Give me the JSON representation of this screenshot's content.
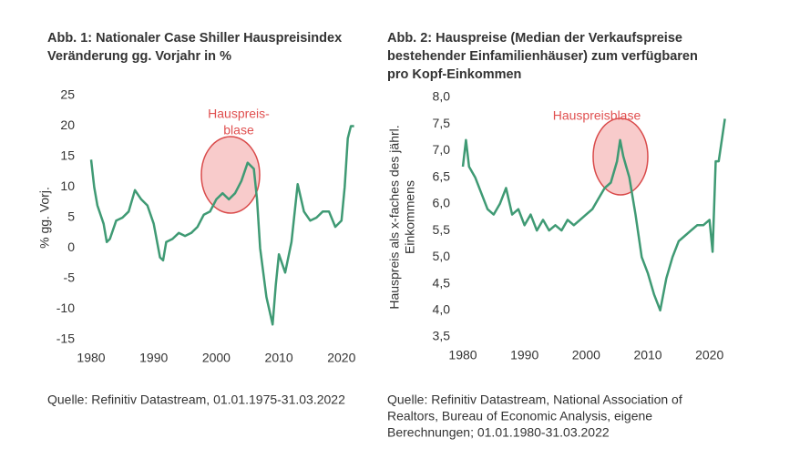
{
  "chart_data": [
    {
      "type": "line",
      "title": [
        "Abb. 1: Nationaler Case Shiller Hauspreisindex",
        "Veränderung gg. Vorjahr in %"
      ],
      "ylabel": "% gg. Vorj.",
      "annotation": [
        "Hauspreis-",
        "blase"
      ],
      "source": [
        "Quelle: Refinitiv Datastream, 01.01.1975-31.03.2022"
      ],
      "xlim": [
        1980,
        2022.5
      ],
      "xticks": [
        1980,
        1990,
        2000,
        2010,
        2020
      ],
      "ylim": [
        -15,
        25
      ],
      "yticks": [
        -15,
        -10,
        -5,
        0,
        5,
        10,
        15,
        20,
        25
      ],
      "series": [
        {
          "color": "#3f9a74",
          "x": [
            1980,
            1980.5,
            1981,
            1982,
            1982.5,
            1983,
            1984,
            1985,
            1986,
            1987,
            1988,
            1989,
            1990,
            1991,
            1991.5,
            1992,
            1993,
            1994,
            1995,
            1996,
            1997,
            1998,
            1999,
            2000,
            2001,
            2002,
            2003,
            2004,
            2005,
            2006,
            2006.5,
            2007,
            2008,
            2009,
            2009.5,
            2010,
            2011,
            2012,
            2013,
            2014,
            2015,
            2016,
            2017,
            2018,
            2019,
            2020,
            2020.5,
            2021,
            2021.5,
            2022
          ],
          "values": [
            14.5,
            10,
            7,
            4,
            1,
            1.5,
            4.5,
            5,
            6,
            9.5,
            8,
            7,
            4,
            -1.5,
            -2,
            1,
            1.5,
            2.5,
            2,
            2.5,
            3.5,
            5.5,
            6,
            8,
            9,
            8,
            9,
            11,
            14,
            13,
            8,
            0,
            -8,
            -12.5,
            -6,
            -1,
            -4,
            1,
            10.5,
            6,
            4.5,
            5,
            6,
            6,
            3.5,
            4.5,
            10,
            18,
            20,
            20
          ]
        }
      ]
    },
    {
      "type": "line",
      "title": [
        "Abb. 2: Hauspreise (Median der Verkaufspreise",
        "bestehender Einfamilienhäuser) zum verfügbaren",
        "pro Kopf-Einkommen"
      ],
      "ylabel": [
        "Hauspreis als x-faches des jährl.",
        "Einkommens"
      ],
      "annotation": [
        "Hauspreisblase"
      ],
      "source": [
        "Quelle: Refinitiv Datastream, National Association of",
        "Realtors, Bureau of Economic Analysis, eigene",
        "Berechnungen; 01.01.1980-31.03.2022"
      ],
      "xlim": [
        1980,
        2023
      ],
      "xticks": [
        1980,
        1990,
        2000,
        2010,
        2020
      ],
      "ylim": [
        3.5,
        8.0
      ],
      "yticks": [
        {
          "value": 3.5,
          "label": "3,5"
        },
        {
          "value": 4.0,
          "label": "4,0"
        },
        {
          "value": 4.5,
          "label": "4,5"
        },
        {
          "value": 5.0,
          "label": "5,0"
        },
        {
          "value": 5.5,
          "label": "5,5"
        },
        {
          "value": 6.0,
          "label": "6,0"
        },
        {
          "value": 6.5,
          "label": "6,5"
        },
        {
          "value": 7.0,
          "label": "7,0"
        },
        {
          "value": 7.5,
          "label": "7,5"
        },
        {
          "value": 8.0,
          "label": "8,0"
        }
      ],
      "series": [
        {
          "color": "#3f9a74",
          "x": [
            1980,
            1980.5,
            1981,
            1982,
            1983,
            1984,
            1985,
            1986,
            1987,
            1988,
            1989,
            1990,
            1991,
            1992,
            1993,
            1994,
            1995,
            1996,
            1997,
            1998,
            1999,
            2000,
            2001,
            2002,
            2003,
            2004,
            2005,
            2005.5,
            2006,
            2006.5,
            2007,
            2008,
            2009,
            2010,
            2011,
            2012,
            2013,
            2014,
            2015,
            2016,
            2017,
            2018,
            2019,
            2020,
            2020.5,
            2021,
            2021.5,
            2022,
            2022.5
          ],
          "values": [
            6.7,
            7.2,
            6.7,
            6.5,
            6.2,
            5.9,
            5.8,
            6.0,
            6.3,
            5.8,
            5.9,
            5.6,
            5.8,
            5.5,
            5.7,
            5.5,
            5.6,
            5.5,
            5.7,
            5.6,
            5.7,
            5.8,
            5.9,
            6.1,
            6.3,
            6.4,
            6.8,
            7.2,
            6.9,
            6.7,
            6.5,
            5.8,
            5.0,
            4.7,
            4.3,
            4.0,
            4.6,
            5.0,
            5.3,
            5.4,
            5.5,
            5.6,
            5.6,
            5.7,
            5.1,
            6.8,
            6.8,
            7.2,
            7.6
          ]
        }
      ]
    }
  ]
}
